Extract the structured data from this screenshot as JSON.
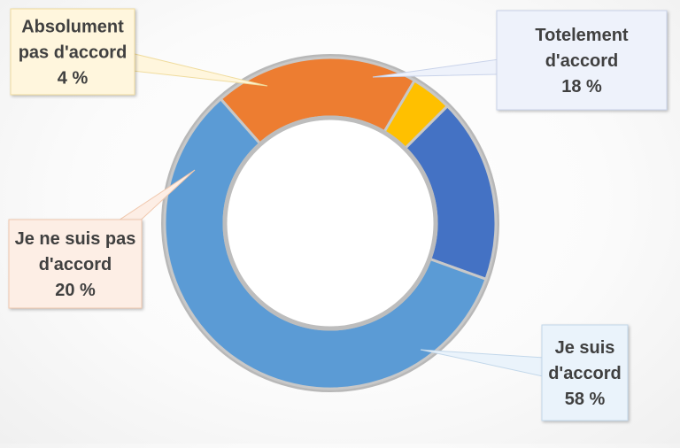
{
  "chart_data": {
    "type": "pie",
    "variant": "donut",
    "legend": "none",
    "series": [
      {
        "categories": [
          "Totelement d'accord",
          "Je suis d'accord",
          "Je ne suis pas d'accord",
          "Absolument pas d'accord"
        ],
        "values": [
          18,
          58,
          20,
          4
        ],
        "colors": [
          "#4472C4",
          "#5B9BD5",
          "#ED7D31",
          "#FFC000"
        ]
      }
    ],
    "labels": [
      {
        "lines": [
          "Totelement",
          "d'accord"
        ],
        "value_text": "18 %"
      },
      {
        "lines": [
          "Je suis",
          "d'accord"
        ],
        "value_text": "58 %"
      },
      {
        "lines": [
          "Je ne suis pas",
          "d'accord"
        ],
        "value_text": "20 %"
      },
      {
        "lines": [
          "Absolument",
          "pas d'accord"
        ],
        "value_text": "4 %"
      }
    ]
  }
}
